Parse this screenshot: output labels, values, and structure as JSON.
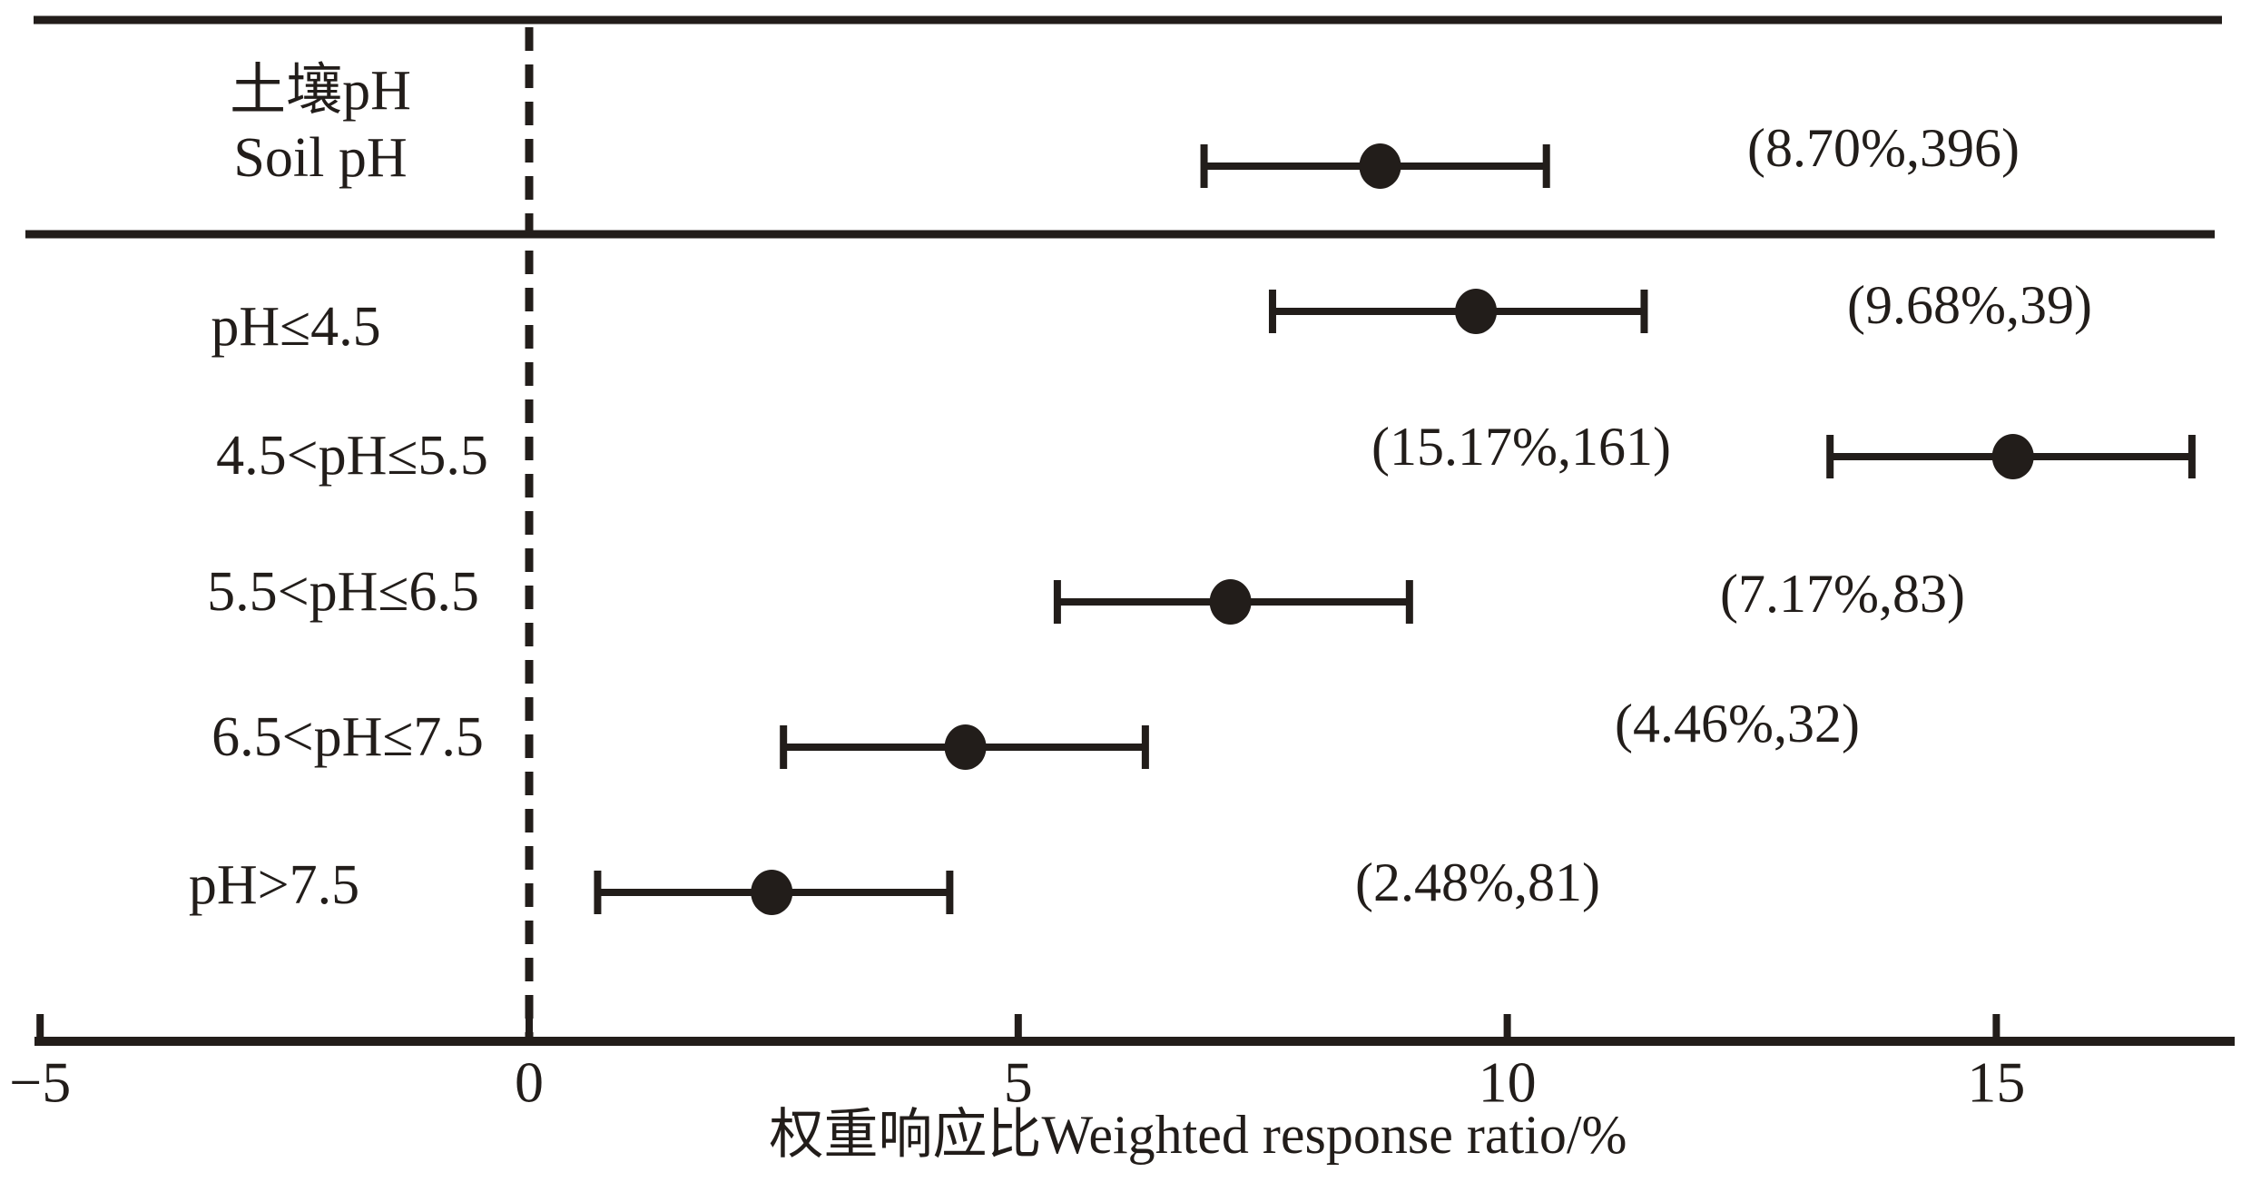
{
  "figure": {
    "background": "#ffffff",
    "ink_color": "#221d1a"
  },
  "chart_data": {
    "type": "forest",
    "title": "",
    "xlabel": "权重响应比Weighted response ratio/%",
    "x_range": [
      -5.1,
      17.4
    ],
    "x_ticks": [
      -5,
      0,
      5,
      10,
      15
    ],
    "x_tick_labels": [
      "−5",
      "0",
      "5",
      "10",
      "15"
    ],
    "zero_reference": 0,
    "grid": false,
    "legend": "none",
    "group_label_line1": "土壤pH",
    "group_label_line2": "Soil pH",
    "rows": [
      {
        "label": "土壤pH",
        "label2": "Soil pH",
        "mean": 8.7,
        "ci_low": 6.9,
        "ci_high": 10.4,
        "n": 396,
        "annotation": "(8.70%,396)",
        "group": "overall"
      },
      {
        "label": "pH≤4.5",
        "mean": 9.68,
        "ci_low": 7.6,
        "ci_high": 11.4,
        "n": 39,
        "annotation": "(9.68%,39)",
        "group": "subgroup"
      },
      {
        "label": "4.5<pH≤5.5",
        "mean": 15.17,
        "ci_low": 13.3,
        "ci_high": 17.0,
        "n": 161,
        "annotation": "(15.17%,161)",
        "group": "subgroup"
      },
      {
        "label": "5.5<pH≤6.5",
        "mean": 7.17,
        "ci_low": 5.4,
        "ci_high": 9.0,
        "n": 83,
        "annotation": "(7.17%,83)",
        "group": "subgroup"
      },
      {
        "label": "6.5<pH≤7.5",
        "mean": 4.46,
        "ci_low": 2.6,
        "ci_high": 6.3,
        "n": 32,
        "annotation": "(4.46%,32)",
        "group": "subgroup"
      },
      {
        "label": "pH>7.5",
        "mean": 2.48,
        "ci_low": 0.7,
        "ci_high": 4.3,
        "n": 81,
        "annotation": "(2.48%,81)",
        "group": "subgroup"
      }
    ]
  }
}
